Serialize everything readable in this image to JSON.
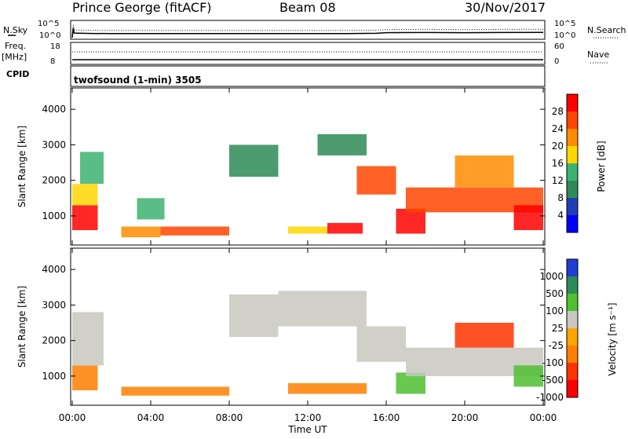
{
  "header": {
    "title": "Prince George (fitACF)",
    "beam": "Beam 08",
    "date": "30/Nov/2017"
  },
  "noise_panel": {
    "left_label": "N.Sky",
    "right_label": "N.Search",
    "left_ticks": [
      "10^5",
      "10^0"
    ],
    "right_ticks": [
      "10^5",
      "10^0"
    ]
  },
  "freq_panel": {
    "left_label_top": "Freq.",
    "left_label_unit": "[MHz]",
    "left_ticks": [
      "18",
      "8"
    ],
    "right_label": "Nave",
    "right_ticks": [
      "60",
      "0"
    ]
  },
  "cpid": {
    "label": "CPID",
    "program": "twofsound (1-min) 3505"
  },
  "power_panel": {
    "ylabel": "Slant Range [km]",
    "colorbar_label": "Power [dB]",
    "colorbar_ticks": [
      "28",
      "24",
      "20",
      "16",
      "12",
      "8",
      "4"
    ],
    "colors": [
      "#ff0000",
      "#ff4500",
      "#ff8c00",
      "#ffd700",
      "#3cb371",
      "#2e8b57",
      "#1e3fb4",
      "#0000ff"
    ]
  },
  "velocity_panel": {
    "ylabel": "Slant Range [km]",
    "colorbar_label": "Velocity [m s⁻¹]",
    "colorbar_ticks": [
      "1000",
      "500",
      "100",
      "25",
      "-25",
      "-100",
      "-500",
      "-1000"
    ],
    "colors": [
      "#1e3fd0",
      "#2e8b57",
      "#4fc030",
      "#c8c8c0",
      "#ffa500",
      "#ff7f00",
      "#ff3300",
      "#ff0000"
    ]
  },
  "xaxis": {
    "label": "Time UT",
    "ticks": [
      "00:00",
      "04:00",
      "08:00",
      "12:00",
      "16:00",
      "20:00",
      "00:00"
    ]
  },
  "chart_data": [
    {
      "type": "line",
      "title": "Prince George (fitACF)",
      "xlabel": "",
      "ylabel": "N.Sky",
      "y2label": "N.Search",
      "yscale": "log",
      "ylim": [
        1,
        100000
      ],
      "xlim": [
        0,
        24
      ],
      "series": [
        {
          "values_x": [
            0.0,
            0.05,
            0.1,
            0.5,
            1,
            2,
            4,
            6,
            8,
            10,
            12,
            14,
            15.5,
            16,
            18,
            20,
            22,
            24
          ],
          "values_y": [
            1,
            1000,
            30,
            25,
            22,
            20,
            20,
            20,
            20,
            20,
            20,
            20,
            25,
            40,
            45,
            40,
            45,
            50
          ]
        }
      ]
    },
    {
      "type": "line",
      "ylabel": "Freq. [MHz]",
      "y2label": "Nave",
      "ylim": [
        8,
        18
      ],
      "y2lim": [
        0,
        60
      ],
      "xlim": [
        0,
        24
      ],
      "series": [
        {
          "values_x": [
            0,
            24
          ],
          "values_y": [
            10.2,
            10.2
          ]
        }
      ]
    },
    {
      "type": "heatmap",
      "ylabel": "Slant Range [km]",
      "zlabel": "Power [dB]",
      "xlim": [
        0,
        24
      ],
      "ylim": [
        180,
        4600
      ],
      "zlim": [
        0,
        32
      ],
      "xticks": [
        "00:00",
        "04:00",
        "08:00",
        "12:00",
        "16:00",
        "20:00",
        "00:00"
      ],
      "yticks": [
        1000,
        2000,
        3000,
        4000
      ],
      "cells": [
        {
          "t": [
            0.0,
            1.3
          ],
          "r": [
            600,
            1300
          ],
          "z": 28
        },
        {
          "t": [
            0.0,
            1.3
          ],
          "r": [
            1300,
            1900
          ],
          "z": 16
        },
        {
          "t": [
            0.4,
            1.6
          ],
          "r": [
            1900,
            2800
          ],
          "z": 10
        },
        {
          "t": [
            2.5,
            4.5
          ],
          "r": [
            400,
            700
          ],
          "z": 18
        },
        {
          "t": [
            3.3,
            4.7
          ],
          "r": [
            900,
            1500
          ],
          "z": 12
        },
        {
          "t": [
            4.5,
            8.0
          ],
          "r": [
            450,
            700
          ],
          "z": 22
        },
        {
          "t": [
            8.0,
            10.5
          ],
          "r": [
            2100,
            3000
          ],
          "z": 8
        },
        {
          "t": [
            11.0,
            13.0
          ],
          "r": [
            500,
            700
          ],
          "z": 16
        },
        {
          "t": [
            12.5,
            15.0
          ],
          "r": [
            2700,
            3300
          ],
          "z": 8
        },
        {
          "t": [
            13.0,
            14.8
          ],
          "r": [
            500,
            800
          ],
          "z": 28
        },
        {
          "t": [
            14.5,
            16.5
          ],
          "r": [
            1600,
            2400
          ],
          "z": 22
        },
        {
          "t": [
            16.5,
            18.0
          ],
          "r": [
            500,
            1200
          ],
          "z": 28
        },
        {
          "t": [
            17.0,
            24.0
          ],
          "r": [
            1100,
            1800
          ],
          "z": 22
        },
        {
          "t": [
            19.5,
            22.5
          ],
          "r": [
            1800,
            2700
          ],
          "z": 18
        },
        {
          "t": [
            22.5,
            24.0
          ],
          "r": [
            600,
            1300
          ],
          "z": 28
        }
      ]
    },
    {
      "type": "heatmap",
      "ylabel": "Slant Range [km]",
      "zlabel": "Velocity [m s⁻¹]",
      "xlabel": "Time UT",
      "xlim": [
        0,
        24
      ],
      "ylim": [
        180,
        4600
      ],
      "zlim": [
        -1000,
        1000
      ],
      "xticks": [
        "00:00",
        "04:00",
        "08:00",
        "12:00",
        "16:00",
        "20:00",
        "00:00"
      ],
      "yticks": [
        1000,
        2000,
        3000,
        4000
      ],
      "cells": [
        {
          "t": [
            0.0,
            1.3
          ],
          "r": [
            600,
            1300
          ],
          "z": -100
        },
        {
          "t": [
            0.0,
            1.6
          ],
          "r": [
            1300,
            2800
          ],
          "z": 0
        },
        {
          "t": [
            2.5,
            8.0
          ],
          "r": [
            450,
            700
          ],
          "z": -100
        },
        {
          "t": [
            8.0,
            10.5
          ],
          "r": [
            2100,
            3300
          ],
          "z": 0
        },
        {
          "t": [
            10.5,
            15.0
          ],
          "r": [
            2400,
            3400
          ],
          "z": 0
        },
        {
          "t": [
            11.0,
            15.0
          ],
          "r": [
            500,
            800
          ],
          "z": -100
        },
        {
          "t": [
            14.5,
            17.0
          ],
          "r": [
            1400,
            2400
          ],
          "z": 0
        },
        {
          "t": [
            16.5,
            18.0
          ],
          "r": [
            500,
            1100
          ],
          "z": 100
        },
        {
          "t": [
            17.0,
            24.0
          ],
          "r": [
            1000,
            1800
          ],
          "z": 0
        },
        {
          "t": [
            19.5,
            22.5
          ],
          "r": [
            1800,
            2500
          ],
          "z": -500
        },
        {
          "t": [
            22.5,
            24.0
          ],
          "r": [
            700,
            1300
          ],
          "z": 100
        }
      ]
    }
  ]
}
